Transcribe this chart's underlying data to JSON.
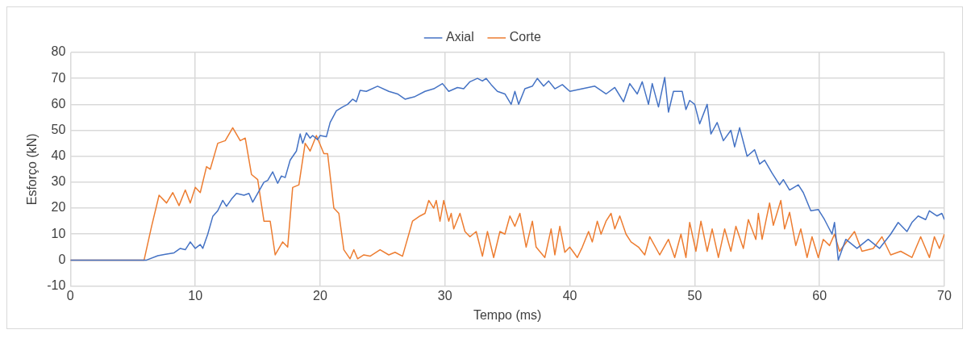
{
  "chart_data": {
    "type": "line",
    "xlabel": "Tempo (ms)",
    "ylabel": "Esforço (kN)",
    "xlim": [
      0,
      70
    ],
    "xticks": [
      0,
      10,
      20,
      30,
      40,
      50,
      60,
      70
    ],
    "ylim": [
      -10,
      80
    ],
    "yticks": [
      -10,
      0,
      10,
      20,
      30,
      40,
      50,
      60,
      70,
      80
    ],
    "grid": true,
    "legend": "top",
    "marker": "none",
    "line_style": "solid",
    "series": [
      {
        "name": "Axial",
        "color": "#4472c4",
        "x": [
          0,
          6.1,
          7,
          7.6,
          8.3,
          8.8,
          9.2,
          9.6,
          10,
          10.4,
          10.6,
          11,
          11.4,
          11.8,
          12.2,
          12.5,
          12.9,
          13.3,
          13.9,
          14.3,
          14.6,
          15,
          15.5,
          15.8,
          16.2,
          16.6,
          16.9,
          17.2,
          17.6,
          18.1,
          18.4,
          18.6,
          18.9,
          19.2,
          19.4,
          19.8,
          20,
          20.5,
          20.8,
          21.3,
          21.8,
          22.2,
          22.6,
          22.9,
          23.2,
          23.7,
          24.6,
          25.5,
          26.2,
          26.8,
          27.6,
          28.4,
          29.1,
          29.8,
          30.3,
          31,
          31.5,
          32,
          32.6,
          33,
          33.3,
          33.7,
          34.2,
          34.8,
          35.3,
          35.6,
          35.9,
          36.4,
          37,
          37.4,
          37.9,
          38.3,
          38.8,
          39.4,
          40,
          41,
          42,
          42.9,
          43.6,
          44.3,
          44.8,
          45.4,
          45.8,
          46.3,
          46.6,
          47.1,
          47.6,
          47.9,
          48.3,
          49,
          49.3,
          49.6,
          50,
          50.4,
          51,
          51.3,
          51.8,
          52.3,
          52.9,
          53.2,
          53.6,
          54.2,
          54.8,
          55.2,
          55.6,
          56.2,
          56.8,
          57.1,
          57.6,
          58.3,
          58.7,
          59.3,
          59.9,
          60.4,
          61,
          61.2,
          61.5,
          62.1,
          63,
          63.9,
          64.8,
          65.7,
          66.3,
          67,
          67.4,
          67.9,
          68.5,
          68.8,
          69.4,
          69.8,
          70
        ],
        "values": [
          0,
          0,
          1.7,
          2.2,
          2.8,
          4.5,
          4,
          7,
          4.5,
          6,
          4.5,
          10,
          16.8,
          19,
          23,
          20.7,
          23.5,
          25.7,
          25,
          25.7,
          22.3,
          25.7,
          30,
          30.7,
          34,
          29.6,
          32.4,
          31.8,
          38.5,
          42,
          48.6,
          45,
          49,
          47,
          48,
          46.4,
          48,
          47.5,
          53,
          57.5,
          59,
          60,
          62,
          61,
          65.4,
          65,
          67,
          65,
          64,
          62,
          63,
          65,
          66,
          68,
          65,
          66.5,
          66,
          68.7,
          70,
          69,
          70,
          67.6,
          65,
          64,
          60,
          65,
          60,
          66,
          67,
          70,
          67,
          69,
          66,
          67.6,
          65,
          66,
          67,
          64,
          66.5,
          61,
          68,
          64,
          68.7,
          60,
          68,
          59,
          70.4,
          57,
          65,
          65,
          58,
          61.5,
          60,
          52.5,
          60,
          48.6,
          53,
          46,
          50,
          43.6,
          51,
          40,
          42.5,
          37,
          38.5,
          33.5,
          29,
          31,
          27,
          29,
          26,
          19,
          19.5,
          15.6,
          10,
          14.5,
          0,
          8,
          4.5,
          8,
          4.5,
          10,
          14.5,
          11,
          14.5,
          17,
          15.6,
          19,
          17,
          18,
          15.6
        ]
      },
      {
        "name": "Corte",
        "color": "#ed7d31",
        "x": [
          0,
          5.9,
          6.5,
          7.1,
          7.7,
          8.2,
          8.7,
          9.2,
          9.6,
          10,
          10.4,
          10.9,
          11.2,
          11.8,
          12.4,
          13,
          13.6,
          14,
          14.5,
          15,
          15.5,
          16,
          16.4,
          17,
          17.4,
          17.8,
          18.3,
          18.8,
          19.2,
          19.7,
          20.3,
          20.6,
          21.1,
          21.5,
          21.9,
          22.4,
          22.7,
          23,
          23.5,
          24,
          24.8,
          25.5,
          26,
          26.6,
          27.4,
          28,
          28.4,
          28.7,
          29.1,
          29.3,
          29.6,
          29.9,
          30.3,
          30.5,
          30.7,
          31.2,
          31.6,
          32,
          32.5,
          33,
          33.4,
          33.9,
          34.4,
          34.8,
          35.2,
          35.6,
          36,
          36.5,
          37,
          37.3,
          38,
          38.5,
          38.8,
          39.2,
          39.6,
          40,
          40.3,
          40.6,
          41,
          41.5,
          41.8,
          42.2,
          42.5,
          42.9,
          43.3,
          43.6,
          44,
          44.5,
          44.9,
          45.5,
          46,
          46.4,
          47.2,
          47.9,
          48.4,
          48.9,
          49.3,
          49.6,
          50.1,
          50.5,
          51,
          51.4,
          51.9,
          52.4,
          52.9,
          53.3,
          53.9,
          54.3,
          54.9,
          55.1,
          55.4,
          56,
          56.3,
          56.9,
          57.2,
          57.6,
          58.1,
          58.5,
          59,
          59.4,
          59.9,
          60.3,
          60.8,
          61.2,
          61.6,
          62.8,
          63.4,
          64.3,
          65,
          65.7,
          66.5,
          67.4,
          68.1,
          68.8,
          69.2,
          69.6,
          70
        ],
        "values": [
          0,
          0,
          13,
          25,
          22,
          26,
          21,
          27,
          22,
          28,
          26,
          36,
          35,
          45,
          46,
          51,
          46,
          47,
          33,
          31,
          15,
          15,
          2,
          7,
          5,
          28,
          29,
          45,
          42,
          48,
          41,
          41,
          20,
          18,
          4,
          0.5,
          4,
          0.5,
          2,
          1.5,
          4,
          2,
          3,
          1.5,
          15,
          17,
          18,
          23,
          20,
          23,
          15,
          23,
          15,
          18,
          12,
          18,
          11,
          9,
          11,
          1.5,
          11,
          1,
          11,
          10,
          17,
          13,
          18,
          5,
          15,
          5,
          1,
          12,
          2,
          13,
          3,
          5,
          3,
          1,
          5,
          11,
          7,
          15,
          10,
          15,
          18,
          12,
          17,
          10,
          7,
          5,
          2,
          9,
          2,
          8,
          1,
          10,
          1,
          14.5,
          3.4,
          15,
          3.4,
          12,
          1,
          12,
          3.4,
          13,
          4.5,
          15.6,
          8,
          18,
          8,
          22,
          13.4,
          23,
          12,
          18.4,
          5.6,
          12,
          1,
          9,
          1,
          8,
          5.6,
          10,
          3.4,
          11,
          3.4,
          4.5,
          9,
          2,
          3.4,
          1,
          9,
          1,
          9,
          4.5,
          10
        ]
      }
    ]
  }
}
